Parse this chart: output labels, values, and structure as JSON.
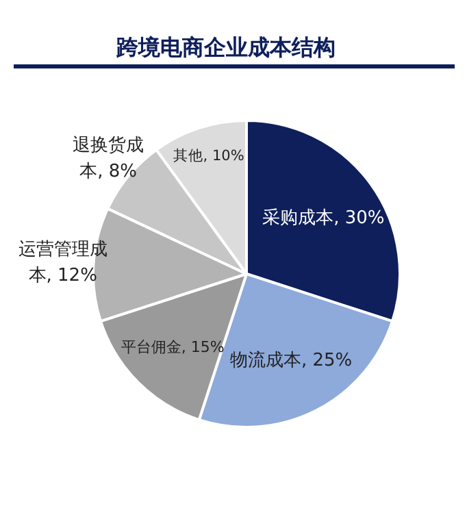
{
  "chart_data": {
    "type": "pie",
    "title": "跨境电商企业成本结构",
    "categories": [
      "采购成本",
      "物流成本",
      "平台佣金",
      "运营管理成本",
      "退换货成本",
      "其他"
    ],
    "values": [
      30,
      25,
      15,
      12,
      8,
      10
    ],
    "value_labels": [
      "30%",
      "25%",
      "15%",
      "12%",
      "8%",
      "10%"
    ],
    "colors": [
      "#0e1f5b",
      "#8eaadb",
      "#9a9a9a",
      "#b3b3b3",
      "#c6c6c6",
      "#dcdcdc"
    ],
    "legend": false
  }
}
